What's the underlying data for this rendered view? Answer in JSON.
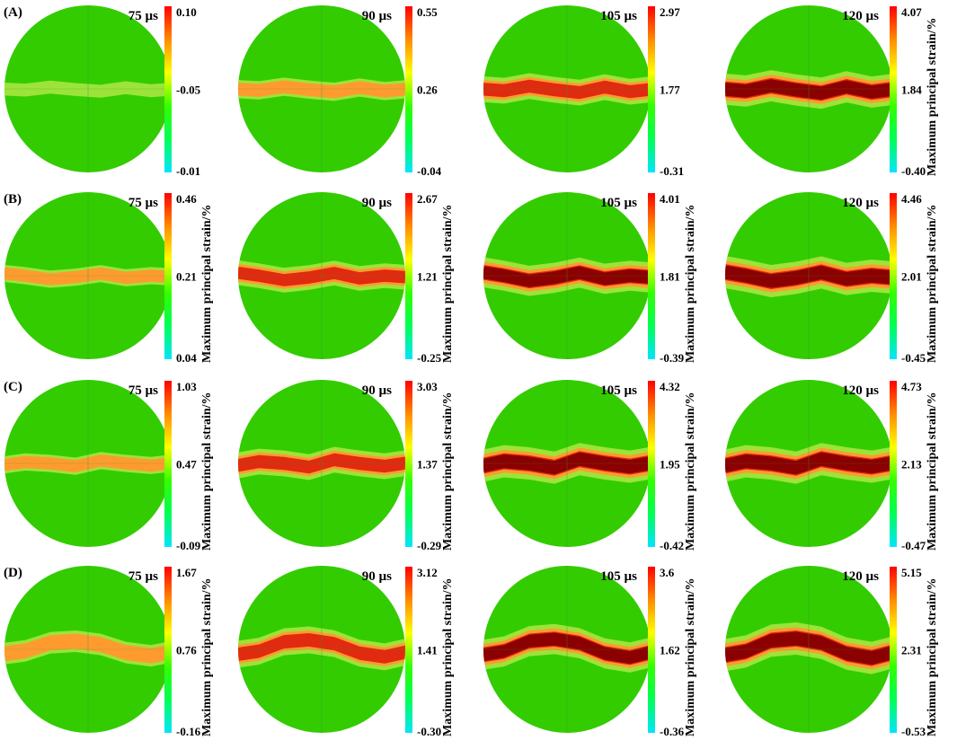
{
  "figure": {
    "colorbar_title": "Maximum principal strain/%",
    "colormap": [
      "#00e5ff",
      "#00ff55",
      "#33ff00",
      "#ffff00",
      "#ff8c00",
      "#ff0000"
    ],
    "contour_colors": {
      "background": "#33cc00",
      "low": "#9ce33a",
      "mid": "#ff9b2e",
      "high": "#e02b10",
      "max": "#8b0000"
    },
    "rows": [
      {
        "label": "(A)",
        "panels": [
          {
            "time": "75 µs",
            "colorbar": {
              "max": "0.10",
              "mid": "-0.05",
              "min": "-0.01"
            },
            "crack_level": 0.1
          },
          {
            "time": "90 µs",
            "colorbar": {
              "max": "0.55",
              "mid": "0.26",
              "min": "-0.04"
            },
            "crack_level": 0.35
          },
          {
            "time": "105 µs",
            "colorbar": {
              "max": "2.97",
              "mid": "1.77",
              "min": "-0.31"
            },
            "crack_level": 0.7
          },
          {
            "time": "120 µs",
            "colorbar": {
              "max": "4.07",
              "mid": "1.84",
              "min": "-0.40"
            },
            "crack_level": 0.95
          }
        ]
      },
      {
        "label": "(B)",
        "panels": [
          {
            "time": "75 µs",
            "colorbar": {
              "max": "0.46",
              "mid": "0.21",
              "min": "0.04"
            },
            "crack_level": 0.3
          },
          {
            "time": "90 µs",
            "colorbar": {
              "max": "2.67",
              "mid": "1.21",
              "min": "-0.25"
            },
            "crack_level": 0.65
          },
          {
            "time": "105 µs",
            "colorbar": {
              "max": "4.01",
              "mid": "1.81",
              "min": "-0.39"
            },
            "crack_level": 0.9
          },
          {
            "time": "120 µs",
            "colorbar": {
              "max": "4.46",
              "mid": "2.01",
              "min": "-0.45"
            },
            "crack_level": 1.0
          }
        ]
      },
      {
        "label": "(C)",
        "panels": [
          {
            "time": "75 µs",
            "colorbar": {
              "max": "1.03",
              "mid": "0.47",
              "min": "-0.09"
            },
            "crack_level": 0.3
          },
          {
            "time": "90 µs",
            "colorbar": {
              "max": "3.03",
              "mid": "1.37",
              "min": "-0.29"
            },
            "crack_level": 0.7
          },
          {
            "time": "105 µs",
            "colorbar": {
              "max": "4.32",
              "mid": "1.95",
              "min": "-0.42"
            },
            "crack_level": 1.0
          },
          {
            "time": "120 µs",
            "colorbar": {
              "max": "4.73",
              "mid": "2.13",
              "min": "-0.47"
            },
            "crack_level": 1.0
          }
        ]
      },
      {
        "label": "(D)",
        "panels": [
          {
            "time": "75 µs",
            "colorbar": {
              "max": "1.67",
              "mid": "0.76",
              "min": "-0.16"
            },
            "crack_level": 0.5
          },
          {
            "time": "90 µs",
            "colorbar": {
              "max": "3.12",
              "mid": "1.41",
              "min": "-0.30"
            },
            "crack_level": 0.75
          },
          {
            "time": "105 µs",
            "colorbar": {
              "max": "3.6",
              "mid": "1.62",
              "min": "-0.36"
            },
            "crack_level": 0.9
          },
          {
            "time": "120 µs",
            "colorbar": {
              "max": "5.15",
              "mid": "2.31",
              "min": "-0.53"
            },
            "crack_level": 1.0
          }
        ]
      }
    ]
  }
}
